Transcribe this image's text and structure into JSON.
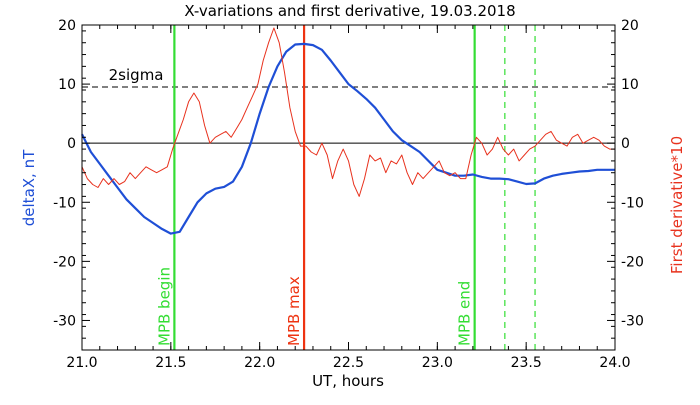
{
  "chart_data": {
    "type": "line",
    "title": "X-variations and first derivative, 19.03.2018",
    "xlabel": "UT, hours",
    "ylabel_left": "deltaX, nT",
    "ylabel_right": "First derivative*10",
    "xlim": [
      21.0,
      24.0
    ],
    "ylim": [
      -35,
      20
    ],
    "x_ticks": [
      21.0,
      21.5,
      22.0,
      22.5,
      23.0,
      23.5,
      24.0
    ],
    "x_tick_labels": [
      "21.0",
      "21.5",
      "22.0",
      "22.5",
      "23.0",
      "23.5",
      "24.0"
    ],
    "y_ticks": [
      -30,
      -20,
      -10,
      0,
      10,
      20
    ],
    "y_tick_labels": [
      "-30",
      "-20",
      "-10",
      "0",
      "10",
      "20"
    ],
    "threshold": {
      "value": 9.5,
      "label": "2sigma",
      "color": "#000000"
    },
    "zero_line": 0,
    "colors": {
      "deltax": "#1f4fd6",
      "derivative": "#e8321e",
      "mpb_edge": "#33dd33",
      "mpb_max": "#ee3311",
      "left_axis_label": "#1f4fd6",
      "right_axis_label": "#e8321e"
    },
    "series": [
      {
        "name": "deltaX, nT",
        "axis": "left",
        "x": [
          21.0,
          21.05,
          21.1,
          21.15,
          21.2,
          21.25,
          21.3,
          21.35,
          21.4,
          21.45,
          21.5,
          21.55,
          21.6,
          21.65,
          21.7,
          21.75,
          21.8,
          21.85,
          21.9,
          21.95,
          22.0,
          22.05,
          22.1,
          22.15,
          22.2,
          22.25,
          22.3,
          22.35,
          22.4,
          22.45,
          22.5,
          22.55,
          22.6,
          22.65,
          22.7,
          22.75,
          22.8,
          22.85,
          22.9,
          22.95,
          23.0,
          23.05,
          23.1,
          23.15,
          23.2,
          23.25,
          23.3,
          23.35,
          23.4,
          23.45,
          23.5,
          23.55,
          23.6,
          23.65,
          23.7,
          23.75,
          23.8,
          23.85,
          23.9,
          23.95,
          24.0
        ],
        "y": [
          1.5,
          -1.5,
          -3.5,
          -5.5,
          -7.5,
          -9.5,
          -11,
          -12.5,
          -13.5,
          -14.5,
          -15.3,
          -15,
          -12.5,
          -10,
          -8.5,
          -7.7,
          -7.4,
          -6.5,
          -4,
          0,
          5,
          9.5,
          13,
          15.5,
          16.7,
          16.8,
          16.6,
          15.8,
          14,
          12,
          10,
          8.8,
          7.5,
          6,
          4,
          2,
          0.5,
          -0.5,
          -1.5,
          -3,
          -4.5,
          -5,
          -5.5,
          -5.5,
          -5.3,
          -5.7,
          -6,
          -6,
          -6.1,
          -6.5,
          -6.9,
          -6.8,
          -6,
          -5.5,
          -5.2,
          -5,
          -4.8,
          -4.7,
          -4.5,
          -4.5,
          -4.5
        ]
      },
      {
        "name": "First derivative*10",
        "axis": "right",
        "x": [
          21.0,
          21.03,
          21.06,
          21.09,
          21.12,
          21.15,
          21.18,
          21.21,
          21.24,
          21.27,
          21.3,
          21.33,
          21.36,
          21.39,
          21.42,
          21.45,
          21.48,
          21.51,
          21.54,
          21.57,
          21.6,
          21.63,
          21.66,
          21.69,
          21.72,
          21.75,
          21.78,
          21.81,
          21.84,
          21.87,
          21.9,
          21.93,
          21.96,
          21.99,
          22.02,
          22.05,
          22.08,
          22.11,
          22.14,
          22.17,
          22.2,
          22.23,
          22.26,
          22.29,
          22.32,
          22.35,
          22.38,
          22.41,
          22.44,
          22.47,
          22.5,
          22.53,
          22.56,
          22.59,
          22.62,
          22.65,
          22.68,
          22.71,
          22.74,
          22.77,
          22.8,
          22.83,
          22.86,
          22.89,
          22.92,
          22.95,
          22.98,
          23.01,
          23.04,
          23.07,
          23.1,
          23.13,
          23.16,
          23.19,
          23.22,
          23.25,
          23.28,
          23.31,
          23.34,
          23.37,
          23.4,
          23.43,
          23.46,
          23.49,
          23.52,
          23.55,
          23.58,
          23.61,
          23.64,
          23.67,
          23.7,
          23.73,
          23.76,
          23.79,
          23.82,
          23.85,
          23.88,
          23.91,
          23.94,
          23.97,
          24.0
        ],
        "y": [
          -4,
          -6,
          -7,
          -7.5,
          -6,
          -7,
          -6,
          -7,
          -6.5,
          -5,
          -6,
          -5,
          -4,
          -4.5,
          -5,
          -4.5,
          -4,
          -1,
          1.5,
          4,
          7,
          8.5,
          7,
          3,
          0,
          1,
          1.5,
          2,
          1,
          2.5,
          4,
          6,
          8,
          10,
          14,
          17,
          19.5,
          17,
          12,
          6,
          2,
          -0.5,
          -0.5,
          -1.5,
          -2,
          0,
          -2,
          -6,
          -3,
          -1,
          -3,
          -7,
          -9,
          -6,
          -2,
          -3,
          -2.5,
          -5,
          -3,
          -3.5,
          -2,
          -5,
          -7,
          -5,
          -6,
          -5,
          -4,
          -3,
          -5,
          -5.5,
          -5,
          -6,
          -6,
          -2,
          1,
          0,
          -2,
          -1,
          1,
          -1,
          -2,
          -1,
          -3,
          -2,
          -1,
          -0.5,
          0.5,
          1.5,
          2,
          0.5,
          0,
          -0.5,
          1,
          1.5,
          0,
          0.5,
          1,
          0.5,
          -0.5,
          -1,
          -1
        ]
      }
    ],
    "markers": [
      {
        "x": 21.52,
        "label": "MPB begin",
        "color": "#33dd33",
        "style": "solid"
      },
      {
        "x": 22.25,
        "label": "MPB max",
        "color": "#ee3311",
        "style": "solid"
      },
      {
        "x": 23.21,
        "label": "MPB end",
        "color": "#33dd33",
        "style": "solid"
      },
      {
        "x": 23.38,
        "label": "",
        "color": "#33dd33",
        "style": "dashed"
      },
      {
        "x": 23.55,
        "label": "",
        "color": "#33dd33",
        "style": "dashed"
      }
    ]
  }
}
